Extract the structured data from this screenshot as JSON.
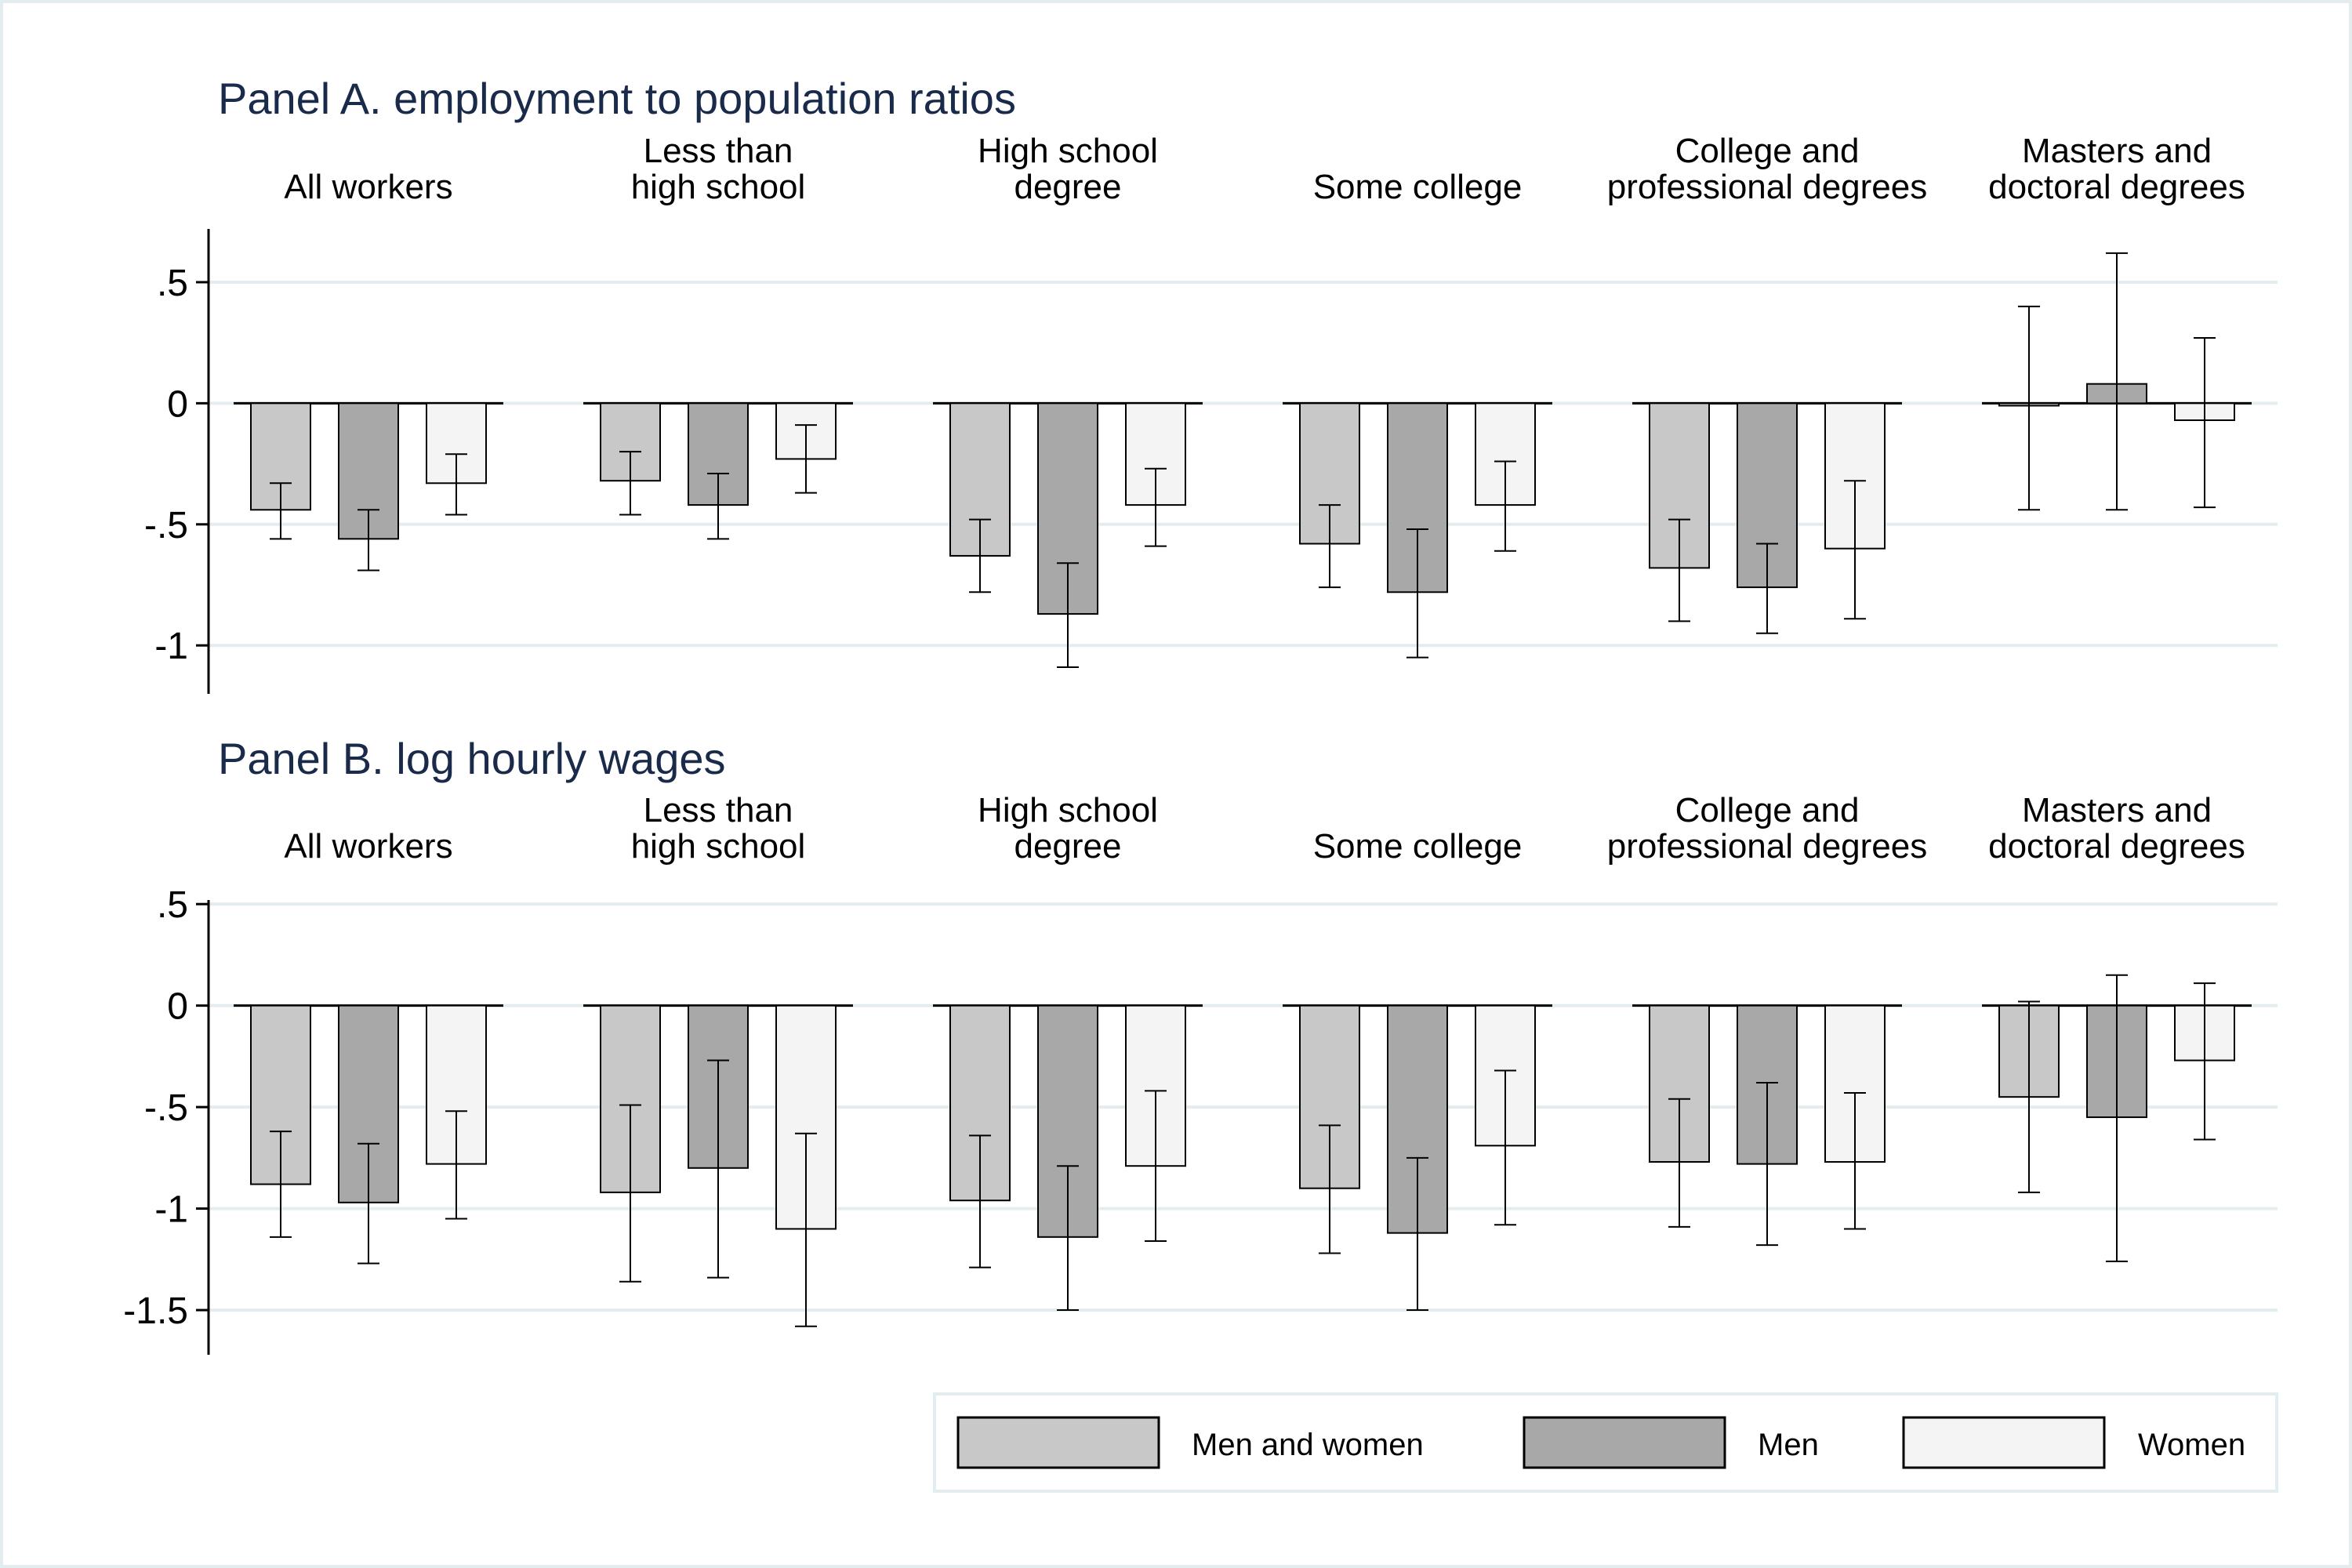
{
  "colors": {
    "men_and_women": "#c8c8c8",
    "men": "#a8a8a8",
    "women": "#f4f4f4",
    "gridline": "#e3ecef",
    "title": "#1a2a4a",
    "text": "#000000"
  },
  "chart_data": [
    {
      "type": "bar",
      "title": "Panel A. employment to population ratios",
      "categories": [
        [
          "All workers"
        ],
        [
          "Less than",
          "high school"
        ],
        [
          "High school",
          "degree"
        ],
        [
          "Some college"
        ],
        [
          "College and",
          "professional degrees"
        ],
        [
          "Masters and",
          "doctoral degrees"
        ]
      ],
      "ylim": [
        -1.2,
        0.72
      ],
      "yticks": [
        0.5,
        0,
        -0.5,
        -1
      ],
      "ytick_labels": [
        ".5",
        "0",
        "-.5",
        "-1"
      ],
      "grid": true,
      "series": [
        {
          "name": "Men and women",
          "values": [
            -0.44,
            -0.32,
            -0.63,
            -0.58,
            -0.68,
            -0.01
          ],
          "ci_low": [
            -0.56,
            -0.46,
            -0.78,
            -0.76,
            -0.9,
            -0.44
          ],
          "ci_high": [
            -0.33,
            -0.2,
            -0.48,
            -0.42,
            -0.48,
            0.4
          ]
        },
        {
          "name": "Men",
          "values": [
            -0.56,
            -0.42,
            -0.87,
            -0.78,
            -0.76,
            0.08
          ],
          "ci_low": [
            -0.69,
            -0.56,
            -1.09,
            -1.05,
            -0.95,
            -0.44
          ],
          "ci_high": [
            -0.44,
            -0.29,
            -0.66,
            -0.52,
            -0.58,
            0.62
          ]
        },
        {
          "name": "Women",
          "values": [
            -0.33,
            -0.23,
            -0.42,
            -0.42,
            -0.6,
            -0.07
          ],
          "ci_low": [
            -0.46,
            -0.37,
            -0.59,
            -0.61,
            -0.89,
            -0.43
          ],
          "ci_high": [
            -0.21,
            -0.09,
            -0.27,
            -0.24,
            -0.32,
            0.27
          ]
        }
      ]
    },
    {
      "type": "bar",
      "title": "Panel B. log hourly wages",
      "categories": [
        [
          "All workers"
        ],
        [
          "Less than",
          "high school"
        ],
        [
          "High school",
          "degree"
        ],
        [
          "Some college"
        ],
        [
          "College and",
          "professional degrees"
        ],
        [
          "Masters and",
          "doctoral degrees"
        ]
      ],
      "ylim": [
        -1.72,
        0.52
      ],
      "yticks": [
        0.5,
        0,
        -0.5,
        -1,
        -1.5
      ],
      "ytick_labels": [
        ".5",
        "0",
        "-.5",
        "-1",
        "-1.5"
      ],
      "grid": true,
      "series": [
        {
          "name": "Men and women",
          "values": [
            -0.88,
            -0.92,
            -0.96,
            -0.9,
            -0.77,
            -0.45
          ],
          "ci_low": [
            -1.14,
            -1.36,
            -1.29,
            -1.22,
            -1.09,
            -0.92
          ],
          "ci_high": [
            -0.62,
            -0.49,
            -0.64,
            -0.59,
            -0.46,
            0.02
          ]
        },
        {
          "name": "Men",
          "values": [
            -0.97,
            -0.8,
            -1.14,
            -1.12,
            -0.78,
            -0.55
          ],
          "ci_low": [
            -1.27,
            -1.34,
            -1.5,
            -1.5,
            -1.18,
            -1.26
          ],
          "ci_high": [
            -0.68,
            -0.27,
            -0.79,
            -0.75,
            -0.38,
            0.15
          ]
        },
        {
          "name": "Women",
          "values": [
            -0.78,
            -1.1,
            -0.79,
            -0.69,
            -0.77,
            -0.27
          ],
          "ci_low": [
            -1.05,
            -1.58,
            -1.16,
            -1.08,
            -1.1,
            -0.66
          ],
          "ci_high": [
            -0.52,
            -0.63,
            -0.42,
            -0.32,
            -0.43,
            0.11
          ]
        }
      ]
    }
  ],
  "legend": {
    "position": "bottom-right",
    "items": [
      "Men and women",
      "Men",
      "Women"
    ]
  }
}
